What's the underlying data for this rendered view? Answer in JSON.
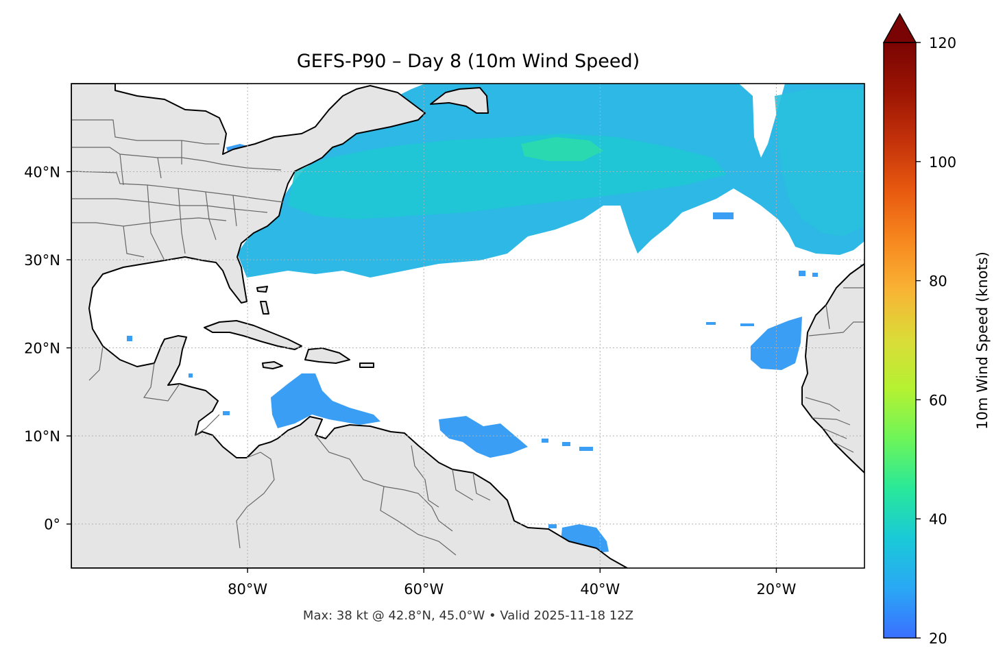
{
  "map": {
    "title": "GEFS-P90 – Day 8 (10m Wind Speed)",
    "caption": "Max: 38 kt @ 42.8°N, 45.0°W • Valid 2025-11-18 12Z",
    "lon_ticks": [
      {
        "value": -80,
        "label": "80°W"
      },
      {
        "value": -60,
        "label": "60°W"
      },
      {
        "value": -40,
        "label": "40°W"
      },
      {
        "value": -20,
        "label": "20°W"
      }
    ],
    "lat_ticks": [
      {
        "value": 40,
        "label": "40°N"
      },
      {
        "value": 30,
        "label": "30°N"
      },
      {
        "value": 20,
        "label": "20°N"
      },
      {
        "value": 10,
        "label": "10°N"
      },
      {
        "value": 0,
        "label": "0°"
      }
    ],
    "extent": {
      "lon_min": -100,
      "lon_max": -10,
      "lat_min": -5,
      "lat_max": 50
    },
    "colors": {
      "land": "#e5e5e5",
      "ocean": "#ffffff",
      "coastline": "#000000",
      "borders": "#666666",
      "gridline": "#b0b0b0",
      "wind_base": "#3aa0f5",
      "wind_mid": "#1fc7d4",
      "wind_high": "#22e09a"
    }
  },
  "colorbar": {
    "label": "10m Wind Speed (knots)",
    "min": 20,
    "max": 120,
    "extend": "max",
    "ticks": [
      {
        "value": 20,
        "label": "20"
      },
      {
        "value": 40,
        "label": "40"
      },
      {
        "value": 60,
        "label": "60"
      },
      {
        "value": 80,
        "label": "80"
      },
      {
        "value": 100,
        "label": "100"
      },
      {
        "value": 120,
        "label": "120"
      }
    ],
    "stops": [
      "#3a6fff",
      "#2aa8f5",
      "#1ac9d8",
      "#28e89a",
      "#6cf55a",
      "#b4f232",
      "#dadc38",
      "#f8b435",
      "#f7881f",
      "#e85a10",
      "#c4320a",
      "#9c1503",
      "#7a0403"
    ]
  }
}
